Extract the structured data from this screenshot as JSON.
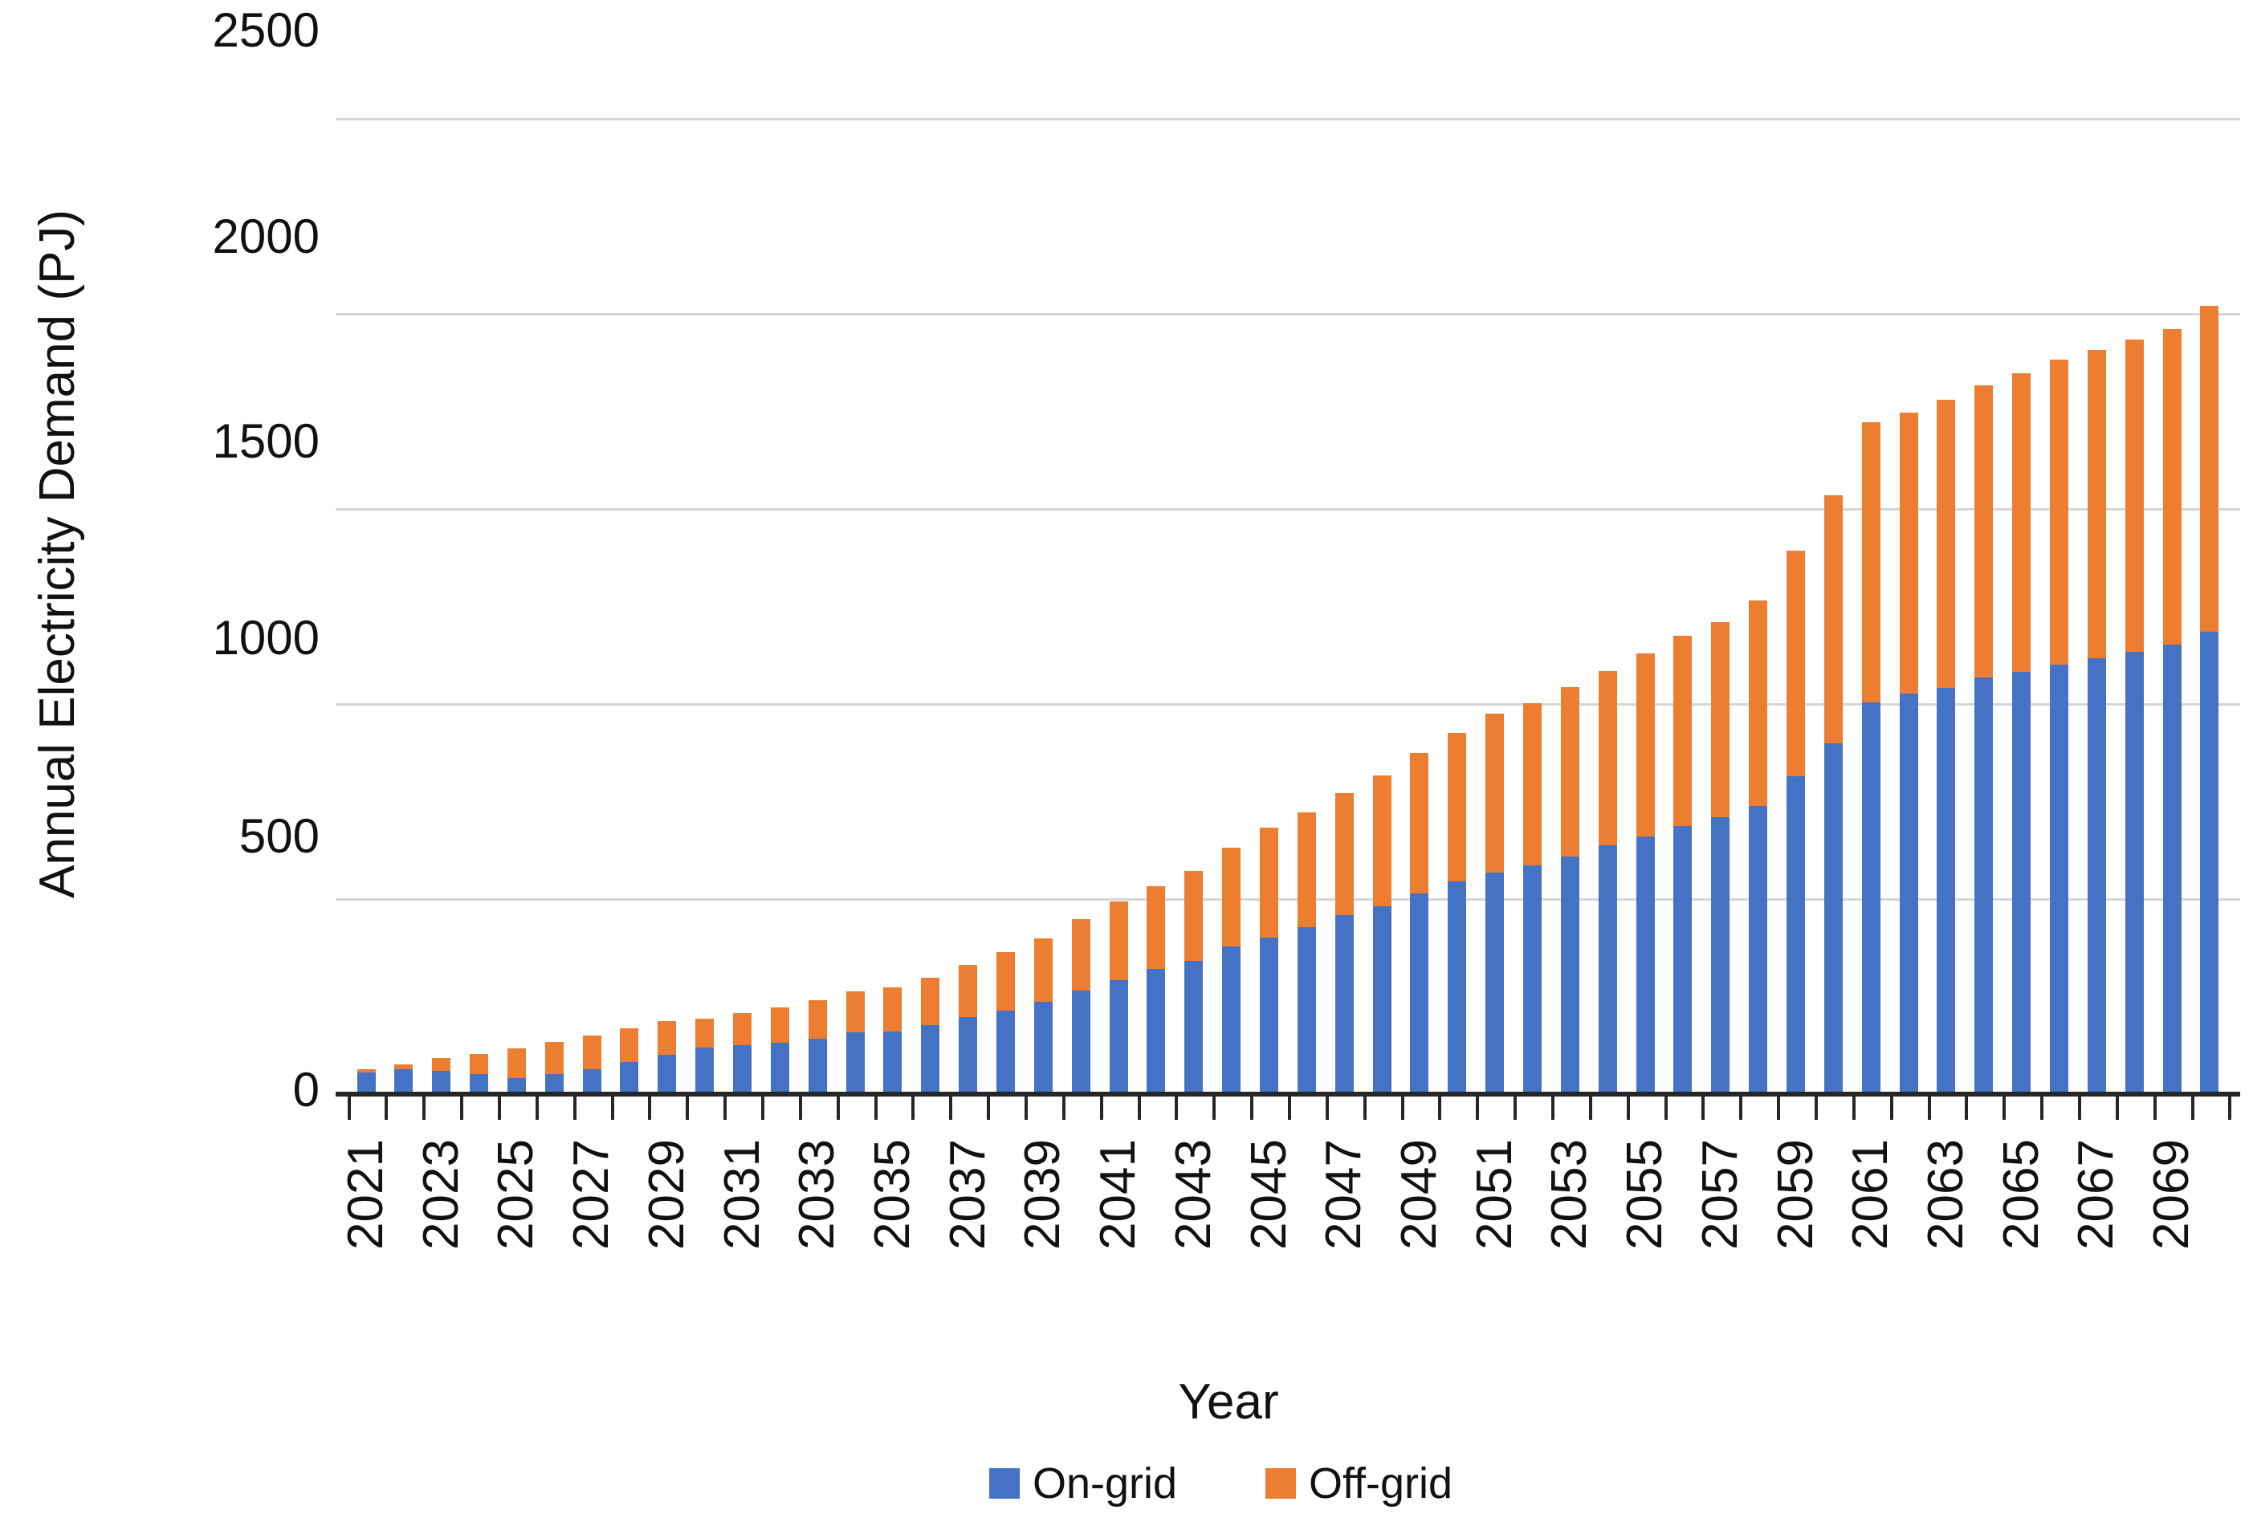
{
  "figure": {
    "ylabel": "Annual Electricity Demand (PJ)",
    "xlabel": "Year"
  },
  "legend": {
    "items": [
      {
        "label": "On-grid",
        "color": "#4472C4"
      },
      {
        "label": "Off-grid",
        "color": "#ED7D31"
      }
    ]
  },
  "chart_data": {
    "type": "bar",
    "stacked": true,
    "title": "",
    "xlabel": "Year",
    "ylabel": "Annual Electricity Demand (PJ)",
    "ylim": [
      0,
      2500
    ],
    "grid": true,
    "legend_position": "bottom",
    "categories": [
      2021,
      2022,
      2023,
      2024,
      2025,
      2026,
      2027,
      2028,
      2029,
      2030,
      2031,
      2032,
      2033,
      2034,
      2035,
      2036,
      2037,
      2038,
      2039,
      2040,
      2041,
      2042,
      2043,
      2044,
      2045,
      2046,
      2047,
      2048,
      2049,
      2050,
      2051,
      2052,
      2053,
      2054,
      2055,
      2056,
      2057,
      2058,
      2059,
      2060,
      2061,
      2062,
      2063,
      2064,
      2065,
      2066,
      2067,
      2068,
      2069,
      2070
    ],
    "series": [
      {
        "name": "On-grid",
        "color": "#4472C4",
        "values": [
          55,
          63,
          60,
          52,
          42,
          51,
          64,
          82,
          100,
          119,
          126,
          132,
          141,
          158,
          160,
          176,
          198,
          215,
          236,
          266,
          292,
          320,
          342,
          378,
          401,
          427,
          458,
          482,
          515,
          546,
          568,
          586,
          609,
          637,
          660,
          688,
          710,
          738,
          815,
          900,
          1005,
          1026,
          1042,
          1068,
          1082,
          1100,
          1117,
          1134,
          1152,
          1185
        ]
      },
      {
        "name": "Off-grid",
        "color": "#ED7D31",
        "values": [
          8,
          13,
          33,
          50,
          75,
          82,
          86,
          87,
          88,
          75,
          81,
          91,
          100,
          106,
          114,
          123,
          133,
          149,
          164,
          183,
          201,
          213,
          231,
          253,
          283,
          295,
          313,
          334,
          360,
          379,
          407,
          416,
          434,
          448,
          470,
          486,
          500,
          527,
          578,
          636,
          717,
          720,
          738,
          748,
          766,
          782,
          791,
          800,
          808,
          835
        ]
      }
    ],
    "y_ticks": [
      0,
      500,
      1000,
      1500,
      2000,
      2500
    ],
    "y_tick_labels": [
      "0",
      "500",
      "1000",
      "1500",
      "2000",
      "2500"
    ],
    "x_tick_labels": [
      "2021",
      "2023",
      "2025",
      "2027",
      "2029",
      "2031",
      "2033",
      "2035",
      "2037",
      "2039",
      "2041",
      "2043",
      "2045",
      "2047",
      "2049",
      "2051",
      "2053",
      "2055",
      "2057",
      "2059",
      "2061",
      "2063",
      "2065",
      "2067",
      "2069"
    ]
  }
}
